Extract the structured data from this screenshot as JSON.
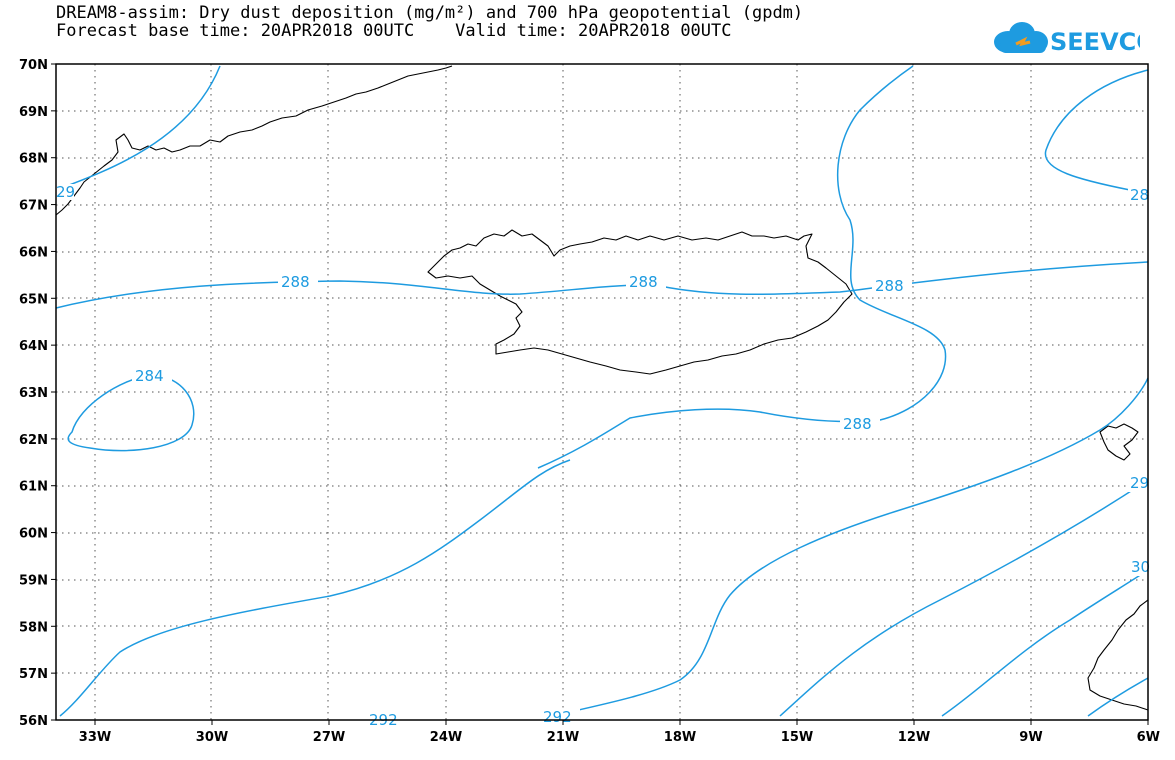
{
  "header": {
    "title_line1": "DREAM8-assim: Dry dust deposition (mg/m²) and 700 hPa geopotential (gpdm)",
    "title_line2": "Forecast base time: 20APR2018 00UTC    Valid time: 20APR2018 00UTC"
  },
  "logo": {
    "text": "SEEVCCC",
    "icon": "cloud-logo-icon",
    "color": "#1e9be0"
  },
  "map": {
    "lon_range": [
      -34,
      -6
    ],
    "lat_range": [
      56,
      70
    ],
    "lon_ticks": [
      "33W",
      "30W",
      "27W",
      "24W",
      "21W",
      "18W",
      "15W",
      "12W",
      "9W",
      "6W"
    ],
    "lat_ticks": [
      "56N",
      "57N",
      "58N",
      "59N",
      "60N",
      "61N",
      "62N",
      "63N",
      "64N",
      "65N",
      "66N",
      "67N",
      "68N",
      "69N",
      "70N"
    ],
    "contour_color": "#1e9be0",
    "contour_labels": {
      "l288a": "288",
      "l288b": "288",
      "l288c": "288",
      "l288d": "288",
      "l284": "284",
      "l292a": "292",
      "l292b": "292",
      "l28r": "28",
      "l29r": "29",
      "l30r": "30",
      "l29l": "29"
    }
  }
}
